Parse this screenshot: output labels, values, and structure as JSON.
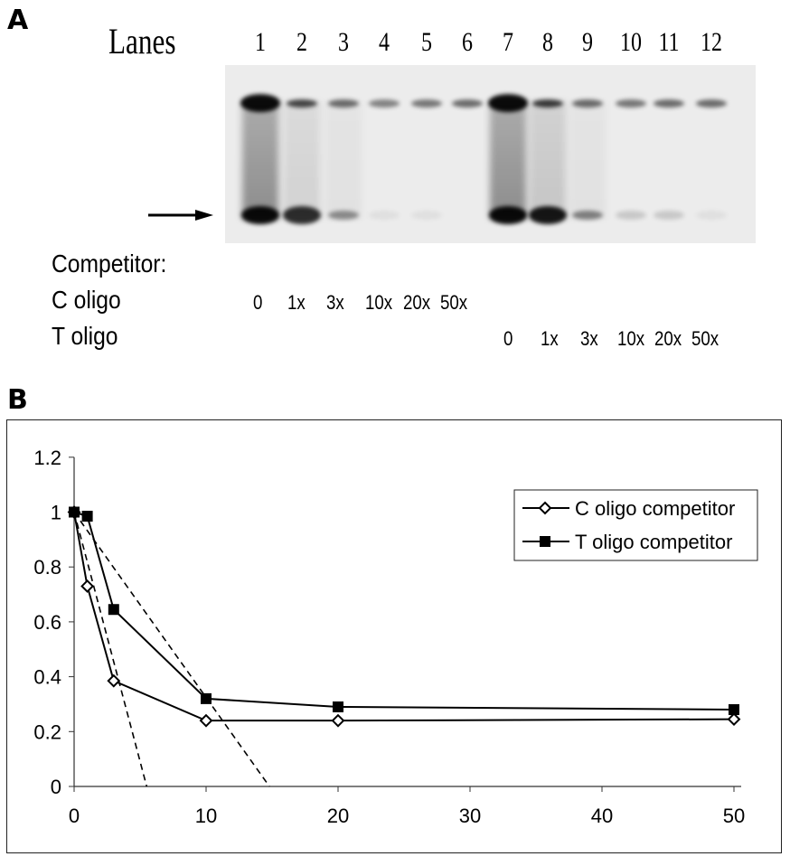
{
  "panel_a": {
    "letter": "A",
    "lanes_label": "Lanes",
    "lanes": [
      "1",
      "2",
      "3",
      "4",
      "5",
      "6",
      "7",
      "8",
      "9",
      "10",
      "11",
      "12"
    ],
    "competitor_label": "Competitor:",
    "rows": [
      {
        "label": "C oligo",
        "values": [
          "0",
          "1x",
          "3x",
          "10x",
          "20x",
          "50x"
        ]
      },
      {
        "label": "T oligo",
        "values": [
          "0",
          "1x",
          "3x",
          "10x",
          "20x",
          "50x"
        ]
      }
    ],
    "arrow": "right-arrow-icon"
  },
  "panel_b": {
    "letter": "B"
  },
  "chart_data": {
    "type": "line",
    "title": "",
    "xlabel": "",
    "ylabel": "",
    "xlim": [
      0,
      50
    ],
    "ylim": [
      0,
      1.2
    ],
    "x_ticks": [
      "0",
      "10",
      "20",
      "30",
      "40",
      "50"
    ],
    "y_ticks": [
      "0",
      "0.2",
      "0.4",
      "0.6",
      "0.8",
      "1",
      "1.2"
    ],
    "grid": false,
    "legend_position": "upper right",
    "series": [
      {
        "name": "C oligo competitor",
        "marker": "open-diamond",
        "x": [
          0,
          1,
          3,
          10,
          20,
          50
        ],
        "values": [
          1.0,
          0.73,
          0.385,
          0.24,
          0.24,
          0.245
        ]
      },
      {
        "name": "T oligo competitor",
        "marker": "filled-square",
        "x": [
          0,
          1,
          3,
          10,
          20,
          50
        ],
        "values": [
          1.0,
          0.985,
          0.645,
          0.32,
          0.29,
          0.28
        ]
      }
    ],
    "annotations": [
      {
        "type": "dashed-line",
        "from": [
          0,
          1.0
        ],
        "to": [
          5.5,
          0
        ]
      },
      {
        "type": "dashed-line",
        "from": [
          0,
          1.0
        ],
        "to": [
          14.8,
          0
        ]
      }
    ]
  }
}
